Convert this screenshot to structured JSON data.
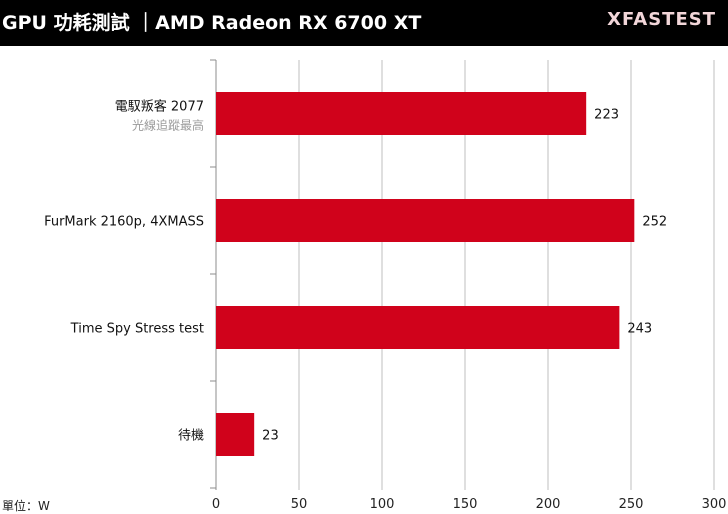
{
  "header": {
    "title": "GPU 功耗測試 ｜AMD Radeon RX 6700 XT",
    "brand": "XFASTEST"
  },
  "unit_label": "單位：W",
  "colors": {
    "bar": "#d0021b",
    "header_bg": "#000000",
    "grid": "#bfbfbf"
  },
  "chart_data": {
    "type": "bar",
    "orientation": "horizontal",
    "title": "GPU 功耗測試 ｜AMD Radeon RX 6700 XT",
    "categories": [
      {
        "label": "電馭叛客 2077",
        "sublabel": "光線追蹤最高"
      },
      {
        "label": "FurMark 2160p, 4XMASS",
        "sublabel": ""
      },
      {
        "label": "Time Spy Stress test",
        "sublabel": ""
      },
      {
        "label": "待機",
        "sublabel": ""
      }
    ],
    "values": [
      223,
      252,
      243,
      23
    ],
    "xlim": [
      0,
      300
    ],
    "xticks": [
      0,
      50,
      100,
      150,
      200,
      250,
      300
    ],
    "grid": true,
    "xlabel": "",
    "ylabel": ""
  }
}
